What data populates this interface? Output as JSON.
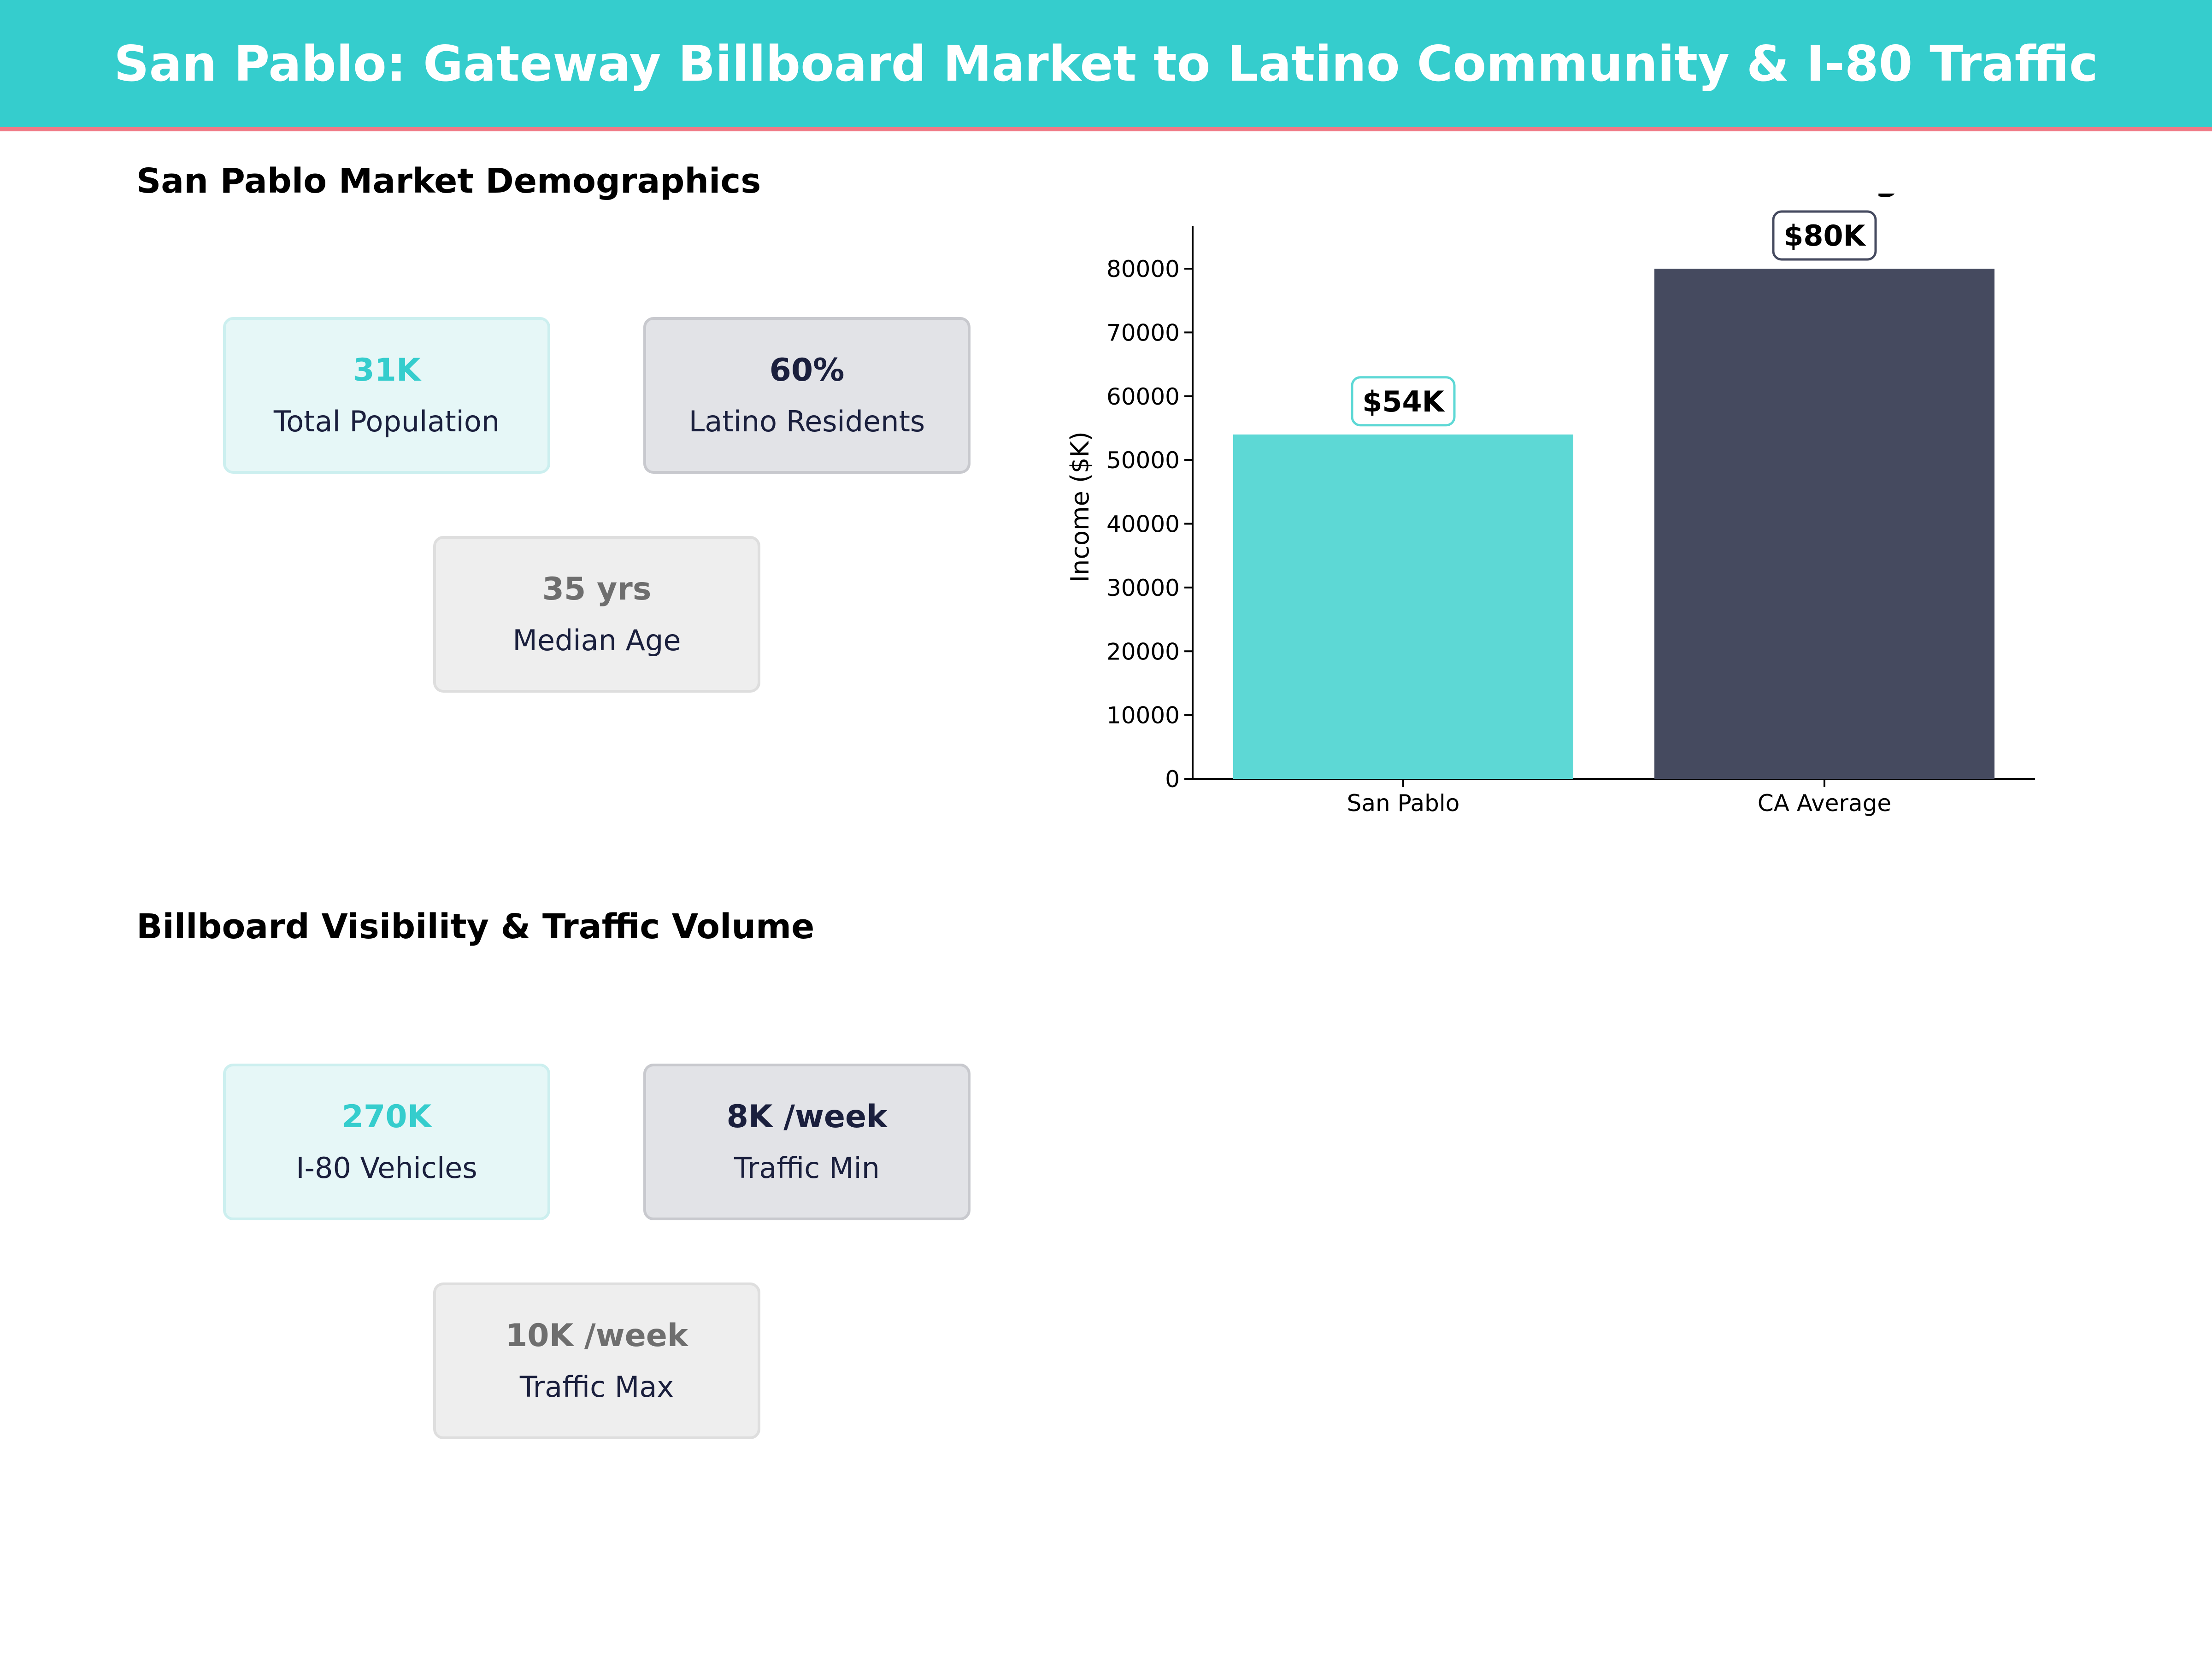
{
  "header": {
    "title": "San Pablo: Gateway Billboard Market to Latino Community & I-80 Traffic"
  },
  "colors": {
    "header_bg": "#35cdcd",
    "accent_line": "#f07a86",
    "teal": "#35cdcd",
    "navy": "#1a1f3d",
    "gray": "#6e6e6e"
  },
  "demographics": {
    "title": "San Pablo Market Demographics",
    "cards": [
      {
        "value": "31K",
        "label": "Total Population"
      },
      {
        "value": "60%",
        "label": "Latino Residents"
      },
      {
        "value": "35 yrs",
        "label": "Median Age"
      }
    ]
  },
  "traffic": {
    "title": "Billboard Visibility & Traffic Volume",
    "cards": [
      {
        "value": "270K",
        "label": "I-80 Vehicles"
      },
      {
        "value": "8K /week",
        "label": "Traffic Min"
      },
      {
        "value": "10K /week",
        "label": "Traffic Max"
      }
    ]
  },
  "chart_data": {
    "type": "bar",
    "title": "Income Profile vs State Average",
    "categories": [
      "San Pablo",
      "CA Average"
    ],
    "values": [
      54000,
      80000
    ],
    "data_labels": [
      "$54K",
      "$80K"
    ],
    "bar_colors": [
      "#5dd8d5",
      "#454a5f"
    ],
    "label_border_colors": [
      "#5dd8d5",
      "#454a5f"
    ],
    "xlabel": "",
    "ylabel": "Income ($K)",
    "ylim": [
      0,
      86000
    ],
    "yticks": [
      0,
      10000,
      20000,
      30000,
      40000,
      50000,
      60000,
      70000,
      80000
    ],
    "grid": false,
    "legend": "none"
  }
}
